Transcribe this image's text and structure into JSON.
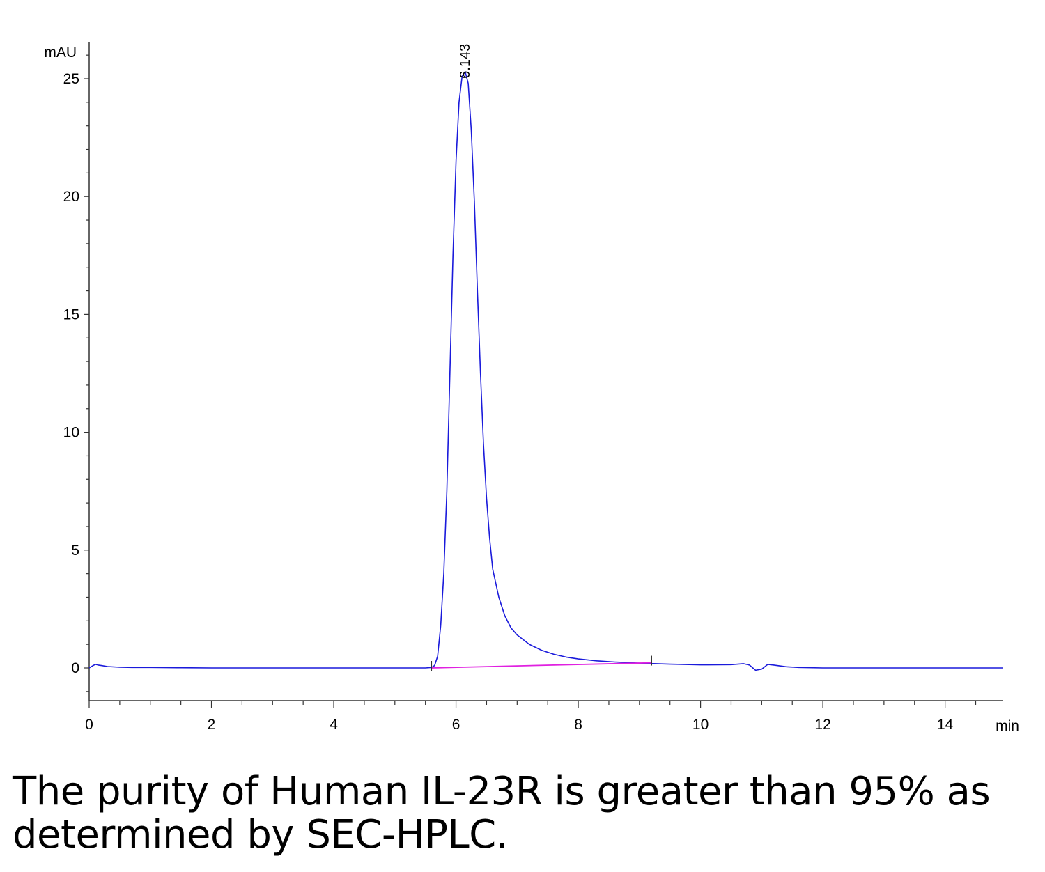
{
  "chart_data": {
    "type": "line",
    "xlabel": "min",
    "ylabel": "mAU",
    "xlim": [
      0,
      14.95
    ],
    "ylim": [
      -1.4,
      26.6
    ],
    "x_ticks": [
      0,
      2,
      4,
      6,
      8,
      10,
      12,
      14
    ],
    "y_ticks": [
      0,
      5,
      10,
      15,
      20,
      25
    ],
    "grid": false,
    "legend": "none",
    "series": [
      {
        "color": "#1a1adb",
        "x": [
          0.0,
          0.05,
          0.1,
          0.15,
          0.2,
          0.3,
          0.5,
          0.7,
          1.0,
          1.5,
          2.0,
          3.0,
          4.0,
          5.0,
          5.5,
          5.6,
          5.65,
          5.7,
          5.75,
          5.8,
          5.85,
          5.9,
          5.95,
          6.0,
          6.05,
          6.1,
          6.15,
          6.2,
          6.25,
          6.3,
          6.35,
          6.4,
          6.45,
          6.5,
          6.55,
          6.6,
          6.7,
          6.8,
          6.9,
          7.0,
          7.2,
          7.4,
          7.6,
          7.8,
          8.0,
          8.3,
          8.6,
          9.0,
          9.5,
          10.0,
          10.5,
          10.7,
          10.8,
          10.9,
          11.0,
          11.1,
          11.2,
          11.4,
          11.6,
          12.0,
          13.0,
          14.0,
          14.95
        ],
        "values": [
          0.0,
          0.08,
          0.15,
          0.12,
          0.1,
          0.06,
          0.03,
          0.02,
          0.02,
          0.01,
          0.0,
          0.0,
          0.0,
          0.0,
          0.0,
          0.02,
          0.1,
          0.5,
          1.8,
          4.0,
          7.5,
          12.5,
          17.5,
          21.5,
          24.0,
          25.1,
          25.3,
          24.8,
          22.8,
          19.8,
          16.0,
          12.5,
          9.5,
          7.2,
          5.5,
          4.2,
          3.0,
          2.2,
          1.7,
          1.4,
          1.0,
          0.75,
          0.58,
          0.46,
          0.38,
          0.3,
          0.25,
          0.2,
          0.16,
          0.13,
          0.14,
          0.18,
          0.12,
          -0.1,
          -0.05,
          0.15,
          0.12,
          0.05,
          0.02,
          0.0,
          0.0,
          0.0,
          0.0
        ]
      },
      {
        "color": "#e020e0",
        "x": [
          5.6,
          9.2
        ],
        "values": [
          0.0,
          0.22
        ]
      }
    ],
    "annotations": [
      {
        "text": "6.143",
        "x": 6.143,
        "y": 25.3
      }
    ]
  },
  "caption": "The purity of Human IL-23R is greater than 95% as determined by SEC-HPLC."
}
